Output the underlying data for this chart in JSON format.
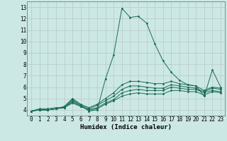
{
  "background_color": "#cce8e4",
  "grid_color": "#b8c8c4",
  "line_color": "#1a6b5a",
  "series": [
    {
      "x": [
        0,
        1,
        2,
        3,
        4,
        5,
        6,
        7,
        8,
        9,
        10,
        11,
        12,
        13,
        14,
        15,
        16,
        17,
        18,
        19,
        20,
        21,
        22,
        23
      ],
      "y": [
        3.9,
        4.1,
        4.1,
        4.2,
        4.2,
        4.8,
        4.4,
        3.9,
        4.0,
        6.7,
        8.8,
        12.9,
        12.1,
        12.2,
        11.6,
        9.8,
        8.3,
        7.3,
        6.6,
        6.2,
        6.1,
        5.2,
        7.5,
        6.0
      ]
    },
    {
      "x": [
        0,
        1,
        2,
        3,
        4,
        5,
        6,
        7,
        8,
        9,
        10,
        11,
        12,
        13,
        14,
        15,
        16,
        17,
        18,
        19,
        20,
        21,
        22,
        23
      ],
      "y": [
        3.9,
        4.0,
        4.0,
        4.1,
        4.3,
        5.0,
        4.5,
        4.2,
        4.5,
        5.0,
        5.5,
        6.2,
        6.5,
        6.5,
        6.4,
        6.3,
        6.3,
        6.5,
        6.3,
        6.2,
        6.1,
        5.7,
        6.0,
        5.9
      ]
    },
    {
      "x": [
        0,
        1,
        2,
        3,
        4,
        5,
        6,
        7,
        8,
        9,
        10,
        11,
        12,
        13,
        14,
        15,
        16,
        17,
        18,
        19,
        20,
        21,
        22,
        23
      ],
      "y": [
        3.9,
        4.0,
        4.0,
        4.1,
        4.3,
        4.9,
        4.4,
        4.1,
        4.4,
        4.8,
        5.2,
        5.8,
        6.1,
        6.1,
        6.0,
        5.9,
        5.9,
        6.2,
        6.1,
        6.0,
        5.9,
        5.6,
        5.9,
        5.8
      ]
    },
    {
      "x": [
        0,
        1,
        2,
        3,
        4,
        5,
        6,
        7,
        8,
        9,
        10,
        11,
        12,
        13,
        14,
        15,
        16,
        17,
        18,
        19,
        20,
        21,
        22,
        23
      ],
      "y": [
        3.9,
        4.0,
        4.0,
        4.1,
        4.2,
        4.7,
        4.3,
        4.0,
        4.2,
        4.6,
        4.9,
        5.5,
        5.7,
        5.8,
        5.7,
        5.7,
        5.7,
        6.0,
        5.9,
        5.8,
        5.8,
        5.5,
        5.7,
        5.6
      ]
    },
    {
      "x": [
        0,
        1,
        2,
        3,
        4,
        5,
        6,
        7,
        8,
        9,
        10,
        11,
        12,
        13,
        14,
        15,
        16,
        17,
        18,
        19,
        20,
        21,
        22,
        23
      ],
      "y": [
        3.9,
        4.0,
        4.0,
        4.1,
        4.2,
        4.6,
        4.3,
        4.0,
        4.1,
        4.5,
        4.8,
        5.2,
        5.4,
        5.5,
        5.4,
        5.4,
        5.4,
        5.7,
        5.7,
        5.6,
        5.6,
        5.3,
        5.6,
        5.5
      ]
    }
  ],
  "xlabel": "Humidex (Indice chaleur)",
  "xlim": [
    -0.5,
    23.5
  ],
  "ylim": [
    3.5,
    13.5
  ],
  "xticks": [
    0,
    1,
    2,
    3,
    4,
    5,
    6,
    7,
    8,
    9,
    10,
    11,
    12,
    13,
    14,
    15,
    16,
    17,
    18,
    19,
    20,
    21,
    22,
    23
  ],
  "yticks": [
    4,
    5,
    6,
    7,
    8,
    9,
    10,
    11,
    12,
    13
  ],
  "xlabel_fontsize": 6.5,
  "tick_fontsize": 5.5
}
